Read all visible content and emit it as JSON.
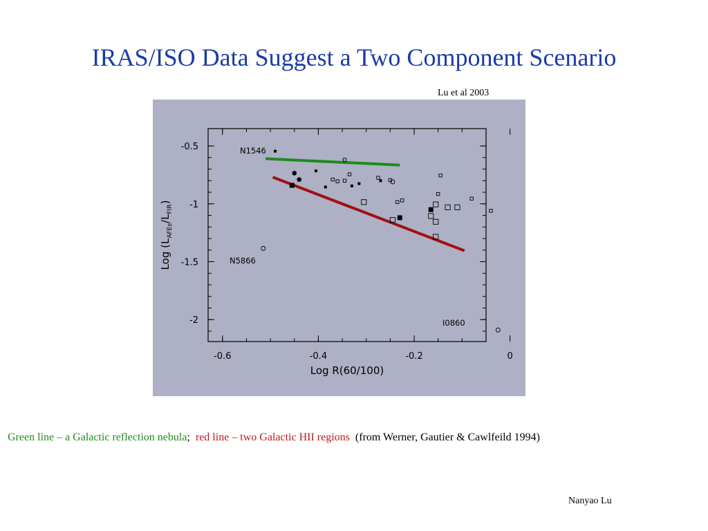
{
  "slide": {
    "title": "IRAS/ISO Data Suggest a Two Component Scenario",
    "citation": "Lu et al 2003",
    "author": "Nanyao Lu",
    "caption": {
      "green_part": "Green line – a Galactic reflection nebula",
      "green_sep": ";",
      "red_part": "red line – two Galactic HII regions",
      "black_part": "(from Werner, Gautier & Cawlfeild 1994)"
    }
  },
  "colors": {
    "title": "#1a3aa8",
    "panel_background": "#aeb0c5",
    "green_line": "#1d8a1d",
    "red_line": "#a01010",
    "caption_green": "#1d8a1d",
    "caption_red": "#c01818"
  },
  "chart_data": {
    "type": "scatter",
    "xlabel": "Log R(60/100)",
    "ylabel_main": "Log (L",
    "ylabel_sub1": "AFEs",
    "ylabel_mid": "/L",
    "ylabel_sub2": "FIR",
    "ylabel_end": ")",
    "xlim": [
      -0.63,
      -0.05
    ],
    "ylim": [
      -2.19,
      -0.35
    ],
    "xticks": [
      -0.6,
      -0.4,
      -0.2,
      0
    ],
    "xtick_labels": [
      "-0.6",
      "-0.4",
      "-0.2",
      "0"
    ],
    "yticks": [
      -0.5,
      -1,
      -1.5,
      -2
    ],
    "ytick_labels": [
      "-0.5",
      "-1",
      "-1.5",
      "-2"
    ],
    "grid": false,
    "lines": [
      {
        "color": "green",
        "x": [
          -0.51,
          -0.23
        ],
        "y": [
          -0.61,
          -0.665
        ]
      },
      {
        "color": "red",
        "x": [
          -0.495,
          -0.095
        ],
        "y": [
          -0.77,
          -1.405
        ]
      }
    ],
    "series": [
      {
        "marker": "small-filled-square",
        "points": [
          [
            -0.49,
            -0.545
          ],
          [
            -0.405,
            -0.715
          ],
          [
            -0.385,
            -0.855
          ],
          [
            -0.33,
            -0.845
          ],
          [
            -0.315,
            -0.825
          ],
          [
            -0.27,
            -0.8
          ]
        ]
      },
      {
        "marker": "large-filled-square",
        "points": [
          [
            -0.455,
            -0.84
          ],
          [
            -0.165,
            -1.05
          ],
          [
            -0.23,
            -1.12
          ]
        ]
      },
      {
        "marker": "filled-circle",
        "points": [
          [
            -0.45,
            -0.735
          ],
          [
            -0.44,
            -0.79
          ]
        ]
      },
      {
        "marker": "small-open-square",
        "points": [
          [
            -0.345,
            -0.62
          ],
          [
            -0.36,
            -0.805
          ],
          [
            -0.37,
            -0.79
          ],
          [
            -0.335,
            -0.745
          ],
          [
            -0.345,
            -0.8
          ],
          [
            -0.275,
            -0.775
          ],
          [
            -0.25,
            -0.795
          ],
          [
            -0.145,
            -0.755
          ],
          [
            -0.225,
            -0.97
          ],
          [
            -0.235,
            -0.985
          ],
          [
            -0.15,
            -0.915
          ],
          [
            -0.08,
            -0.955
          ],
          [
            -0.04,
            -1.06
          ]
        ]
      },
      {
        "marker": "large-open-square",
        "points": [
          [
            -0.305,
            -0.985
          ],
          [
            -0.155,
            -1.005
          ],
          [
            -0.13,
            -1.03
          ],
          [
            -0.11,
            -1.03
          ],
          [
            -0.165,
            -1.105
          ],
          [
            -0.155,
            -1.155
          ],
          [
            -0.245,
            -1.14
          ],
          [
            -0.155,
            -1.285
          ]
        ]
      },
      {
        "marker": "open-circle",
        "points": [
          [
            -0.245,
            -0.81
          ],
          [
            -0.515,
            -1.385
          ],
          [
            -0.025,
            -2.09
          ]
        ]
      }
    ],
    "annotations": [
      "N1546",
      "N5866",
      "I0860"
    ]
  }
}
